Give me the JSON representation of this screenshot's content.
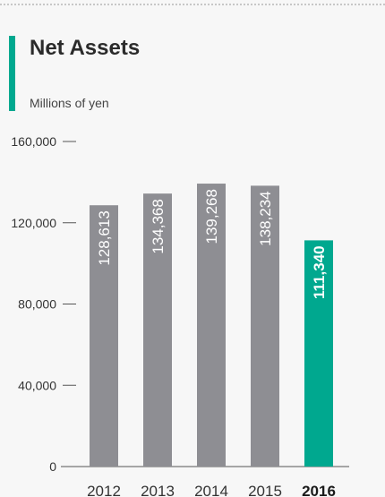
{
  "header": {
    "title": "Net Assets",
    "subtitle": "Millions of yen"
  },
  "colors": {
    "accent": "#00a88f",
    "bar": "#8e8e93",
    "highlight": "#00a88f"
  },
  "chart_data": {
    "type": "bar",
    "title": "Net Assets",
    "ylabel": "Millions of yen",
    "categories": [
      "2012",
      "2013",
      "2014",
      "2015",
      "2016"
    ],
    "values": [
      128613,
      134368,
      139268,
      138234,
      111340
    ],
    "value_labels": [
      "128,613",
      "134,368",
      "139,268",
      "138,234",
      "111,340"
    ],
    "highlight_index": 4,
    "ylim": [
      0,
      160000
    ],
    "y_ticks": [
      0,
      40000,
      80000,
      120000,
      160000
    ],
    "y_tick_labels": [
      "0",
      "40,000",
      "80,000",
      "120,000",
      "160,000"
    ],
    "grid": false,
    "legend": "none"
  }
}
